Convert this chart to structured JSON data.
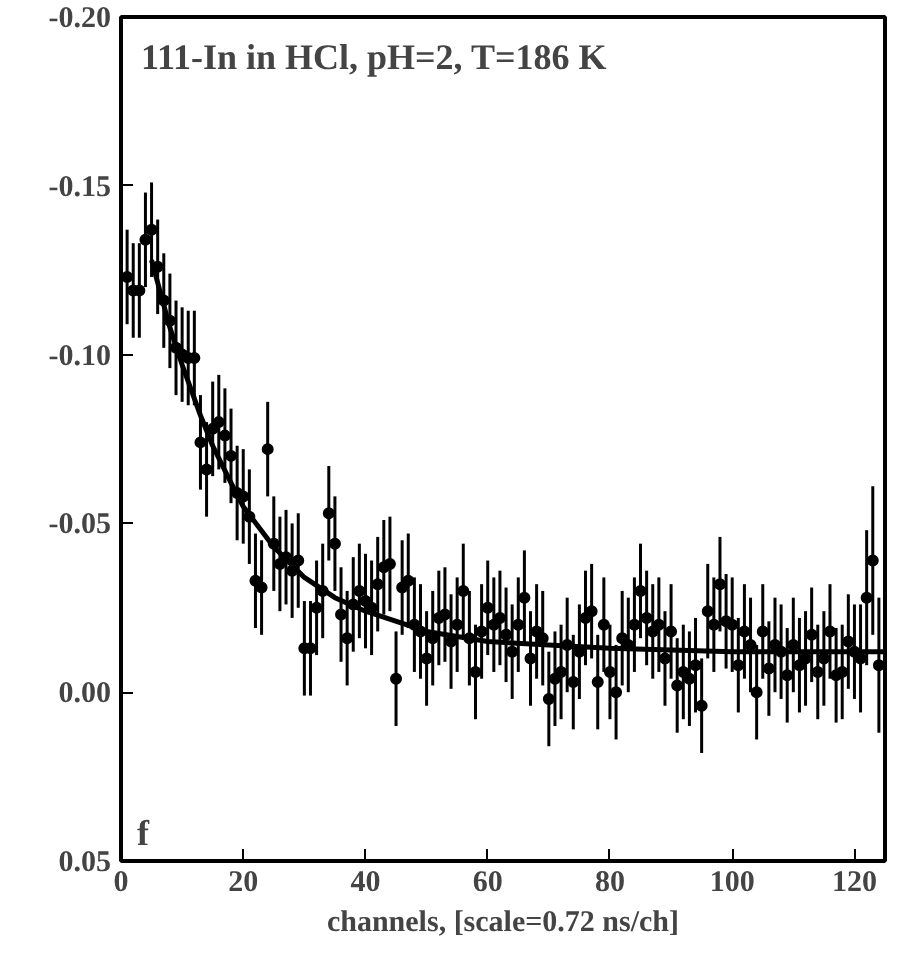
{
  "chart_data": {
    "type": "scatter",
    "title": "111-In in HCl, pH=2, T=186 K",
    "xlabel": "channels, [scale=0.72 ns/ch]",
    "annotations": [
      "f"
    ],
    "xlim": [
      0,
      125
    ],
    "xticks": [
      0,
      20,
      40,
      60,
      80,
      100,
      120
    ],
    "ylim": [
      0.05,
      -0.2
    ],
    "yticks": [
      {
        "value": -0.2,
        "label": "-0.20"
      },
      {
        "value": -0.15,
        "label": "-0.15"
      },
      {
        "value": -0.1,
        "label": "-0.10"
      },
      {
        "value": -0.05,
        "label": "-0.05"
      },
      {
        "value": 0.0,
        "label": "0.00"
      },
      {
        "value": 0.05,
        "label": "0.05"
      }
    ],
    "grid": false,
    "series": [
      {
        "marker": "circle",
        "color": "#000000",
        "x": [
          1,
          2,
          3,
          4,
          5,
          6,
          7,
          8,
          9,
          10,
          11,
          12,
          13,
          14,
          15,
          16,
          17,
          18,
          19,
          20,
          21,
          22,
          23,
          24,
          25,
          26,
          27,
          28,
          29,
          30,
          31,
          32,
          33,
          34,
          35,
          36,
          37,
          38,
          39,
          40,
          41,
          42,
          43,
          44,
          45,
          46,
          47,
          48,
          49,
          50,
          51,
          52,
          53,
          54,
          55,
          56,
          57,
          58,
          59,
          60,
          61,
          62,
          63,
          64,
          65,
          66,
          67,
          68,
          69,
          70,
          71,
          72,
          73,
          74,
          75,
          76,
          77,
          78,
          79,
          80,
          81,
          82,
          83,
          84,
          85,
          86,
          87,
          88,
          89,
          90,
          91,
          92,
          93,
          94,
          95,
          96,
          97,
          98,
          99,
          100,
          101,
          102,
          103,
          104,
          105,
          106,
          107,
          108,
          109,
          110,
          111,
          112,
          113,
          114,
          115,
          116,
          117,
          118,
          119,
          120,
          121,
          122,
          123,
          124
        ],
        "values": [
          -0.123,
          -0.119,
          -0.119,
          -0.134,
          -0.137,
          -0.126,
          -0.116,
          -0.11,
          -0.102,
          -0.1,
          -0.099,
          -0.099,
          -0.074,
          -0.066,
          -0.078,
          -0.08,
          -0.076,
          -0.07,
          -0.059,
          -0.058,
          -0.052,
          -0.033,
          -0.031,
          -0.072,
          -0.044,
          -0.038,
          -0.04,
          -0.036,
          -0.039,
          -0.013,
          -0.013,
          -0.025,
          -0.03,
          -0.053,
          -0.044,
          -0.023,
          -0.016,
          -0.026,
          -0.03,
          -0.027,
          -0.025,
          -0.032,
          -0.037,
          -0.038,
          -0.004,
          -0.031,
          -0.033,
          -0.02,
          -0.018,
          -0.01,
          -0.016,
          -0.022,
          -0.023,
          -0.015,
          -0.02,
          -0.03,
          -0.016,
          -0.006,
          -0.018,
          -0.025,
          -0.02,
          -0.022,
          -0.017,
          -0.012,
          -0.02,
          -0.028,
          -0.01,
          -0.018,
          -0.016,
          0.002,
          -0.004,
          -0.006,
          -0.014,
          -0.003,
          -0.012,
          -0.022,
          -0.024,
          -0.003,
          -0.02,
          -0.006,
          0.0,
          -0.016,
          -0.014,
          -0.02,
          -0.03,
          -0.022,
          -0.018,
          -0.02,
          -0.01,
          -0.018,
          -0.002,
          -0.006,
          -0.004,
          -0.008,
          0.004,
          -0.024,
          -0.02,
          -0.032,
          -0.021,
          -0.02,
          -0.008,
          -0.018,
          -0.014,
          0.0,
          -0.018,
          -0.007,
          -0.014,
          -0.012,
          -0.005,
          -0.014,
          -0.008,
          -0.01,
          -0.017,
          -0.006,
          -0.01,
          -0.018,
          -0.005,
          -0.006,
          -0.015,
          -0.012,
          -0.01,
          -0.028,
          -0.039,
          -0.008
        ],
        "errors": [
          0.014,
          0.014,
          0.014,
          0.014,
          0.014,
          0.014,
          0.014,
          0.014,
          0.014,
          0.014,
          0.014,
          0.014,
          0.014,
          0.014,
          0.014,
          0.014,
          0.014,
          0.014,
          0.014,
          0.014,
          0.014,
          0.014,
          0.014,
          0.014,
          0.014,
          0.014,
          0.014,
          0.014,
          0.014,
          0.014,
          0.014,
          0.014,
          0.014,
          0.014,
          0.014,
          0.014,
          0.014,
          0.014,
          0.014,
          0.014,
          0.014,
          0.014,
          0.014,
          0.014,
          0.014,
          0.014,
          0.014,
          0.014,
          0.014,
          0.014,
          0.014,
          0.014,
          0.014,
          0.014,
          0.014,
          0.014,
          0.014,
          0.014,
          0.014,
          0.014,
          0.014,
          0.014,
          0.014,
          0.014,
          0.014,
          0.014,
          0.014,
          0.014,
          0.014,
          0.014,
          0.014,
          0.014,
          0.014,
          0.014,
          0.014,
          0.014,
          0.014,
          0.014,
          0.014,
          0.014,
          0.014,
          0.014,
          0.014,
          0.014,
          0.014,
          0.014,
          0.014,
          0.014,
          0.014,
          0.014,
          0.014,
          0.014,
          0.014,
          0.014,
          0.014,
          0.014,
          0.014,
          0.014,
          0.014,
          0.014,
          0.014,
          0.014,
          0.014,
          0.014,
          0.014,
          0.014,
          0.014,
          0.014,
          0.014,
          0.014,
          0.014,
          0.014,
          0.014,
          0.014,
          0.014,
          0.014,
          0.014,
          0.014,
          0.014,
          0.014,
          0.016,
          0.02,
          0.022,
          0.02
        ]
      },
      {
        "type": "line",
        "color": "#000000",
        "x": [
          5,
          8,
          10,
          13,
          15,
          18,
          20,
          25,
          30,
          35,
          40,
          50,
          60,
          70,
          80,
          100,
          125
        ],
        "values": [
          -0.128,
          -0.108,
          -0.097,
          -0.082,
          -0.073,
          -0.062,
          -0.055,
          -0.043,
          -0.034,
          -0.028,
          -0.024,
          -0.018,
          -0.015,
          -0.014,
          -0.013,
          -0.012,
          -0.012
        ]
      }
    ]
  }
}
